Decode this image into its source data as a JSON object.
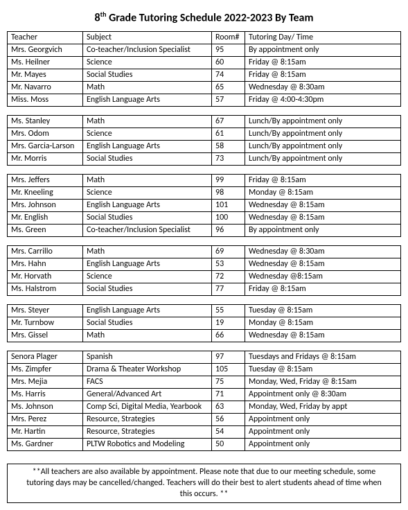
{
  "title_prefix": "8",
  "title_sup": "th",
  "title_rest": " Grade Tutoring Schedule 2022-2023 By Team",
  "columns": [
    "Teacher",
    "Subject",
    "Room#",
    "Tutoring Day/ Time"
  ],
  "groups": [
    {
      "rows": [
        [
          "Mrs. Georgvich",
          "Co-teacher/Inclusion Specialist",
          "95",
          "By appointment only"
        ],
        [
          "Ms. Heilner",
          "Science",
          "60",
          "Friday @ 8:15am"
        ],
        [
          "Mr. Mayes",
          "Social Studies",
          "74",
          "Friday @ 8:15am"
        ],
        [
          "Mr. Navarro",
          "Math",
          "65",
          "Wednesday @ 8:30am"
        ],
        [
          "Miss. Moss",
          "English Language Arts",
          "57",
          "Friday @ 4:00-4:30pm"
        ]
      ]
    },
    {
      "rows": [
        [
          "Ms. Stanley",
          "Math",
          "67",
          "Lunch/By appointment only"
        ],
        [
          "Mrs. Odom",
          "Science",
          "61",
          "Lunch/By appointment only"
        ],
        [
          "Mrs. Garcia-Larson",
          "English Language Arts",
          "58",
          "Lunch/By appointment only"
        ],
        [
          "Mr. Morris",
          "Social Studies",
          "73",
          "Lunch/By appointment only"
        ]
      ]
    },
    {
      "rows": [
        [
          "Mrs. Jeffers",
          "Math",
          "99",
          "Friday @ 8:15am"
        ],
        [
          "Mr. Kneeling",
          "Science",
          "98",
          "Monday @ 8:15am"
        ],
        [
          "Mrs. Johnson",
          "English Language Arts",
          "101",
          "Wednesday @ 8:15am"
        ],
        [
          "Mr. English",
          "Social Studies",
          "100",
          "Wednesday @ 8:15am"
        ],
        [
          "Ms. Green",
          "Co-teacher/Inclusion Specialist",
          "96",
          "By appointment only"
        ]
      ]
    },
    {
      "rows": [
        [
          "Mrs. Carrillo",
          "Math",
          "69",
          "Wednesday @ 8:30am"
        ],
        [
          "Mrs. Hahn",
          "English Language Arts",
          "53",
          "Wednesday @ 8:15am"
        ],
        [
          "Mr. Horvath",
          "Science",
          "72",
          "Wednesday @8:15am"
        ],
        [
          "Ms. Halstrom",
          "Social Studies",
          "77",
          "Friday @ 8:15am"
        ]
      ]
    },
    {
      "rows": [
        [
          "Mrs. Steyer",
          "English Language Arts",
          "55",
          "Tuesday @ 8:15am"
        ],
        [
          "Mr. Turnbow",
          "Social Studies",
          "19",
          "Monday @ 8:15am"
        ],
        [
          "Mrs. Gissel",
          "Math",
          "66",
          "Wednesday @ 8:15am"
        ]
      ]
    },
    {
      "rows": [
        [
          "Senora Plager",
          "Spanish",
          "97",
          "Tuesdays and Fridays @ 8:15am"
        ],
        [
          "Ms. Zimpfer",
          "Drama & Theater Workshop",
          "105",
          "Tuesday @ 8:15am"
        ],
        [
          "Mrs. Mejia",
          "FACS",
          "75",
          "Monday, Wed, Friday @ 8:15am"
        ],
        [
          "Ms. Harris",
          "General/Advanced Art",
          "71",
          "Appointment only @ 8:30am"
        ],
        [
          "Ms. Johnson",
          "Comp Sci, Digital Media, Yearbook",
          "63",
          "Monday, Wed, Friday by appt"
        ],
        [
          "Mrs. Perez",
          "Resource, Strategies",
          "56",
          "Appointment only"
        ],
        [
          "Mr. Hartin",
          "Resource, Strategies",
          "54",
          "Appointment only"
        ],
        [
          "Ms. Gardner",
          "PLTW Robotics and Modeling",
          "50",
          "Appointment only"
        ]
      ]
    }
  ],
  "footnote": "**All teachers are also available by appointment. Please note that due to our meeting schedule, some tutoring days may be cancelled/changed. Teachers will do their best to alert students ahead of time when this occurs. **"
}
